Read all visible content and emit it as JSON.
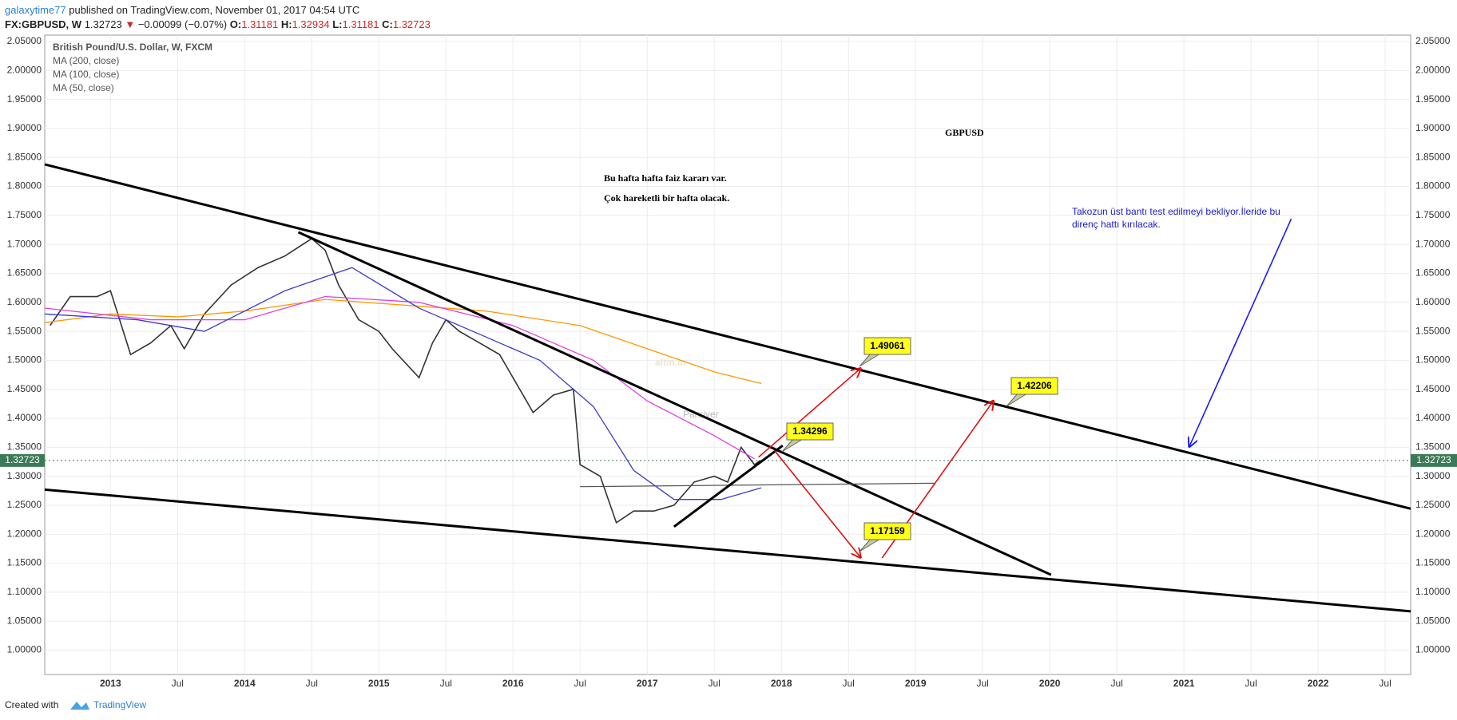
{
  "header": {
    "author": "galaxytime77",
    "published": "published on TradingView.com, November 01, 2017 04:54 UTC",
    "symbol": "FX:GBPUSD, W",
    "direction": "▼",
    "change": "−0.00099 (−0.07%)",
    "ohlc": [
      {
        "name": "O:",
        "value": "1.31181"
      },
      {
        "name": "H:",
        "value": "1.32934"
      },
      {
        "name": "L:",
        "value": "1.31181"
      },
      {
        "name": "C:",
        "value": "1.32723"
      }
    ]
  },
  "footer": {
    "created": "Created with",
    "brand": "TradingView"
  },
  "chart_data": {
    "type": "line",
    "grid": true,
    "xlim": [
      2012.51,
      2022.69
    ],
    "ylim": [
      0.958,
      2.061
    ],
    "xticks": [
      2013,
      {
        "value": 2013.5,
        "label": "Jul"
      },
      2014,
      {
        "value": 2014.5,
        "label": "Jul"
      },
      2015,
      {
        "value": 2015.5,
        "label": "Jul"
      },
      2016,
      {
        "value": 2016.5,
        "label": "Jul"
      },
      2017,
      {
        "value": 2017.5,
        "label": "Jul"
      },
      2018,
      {
        "value": 2018.5,
        "label": "Jul"
      },
      2019,
      {
        "value": 2019.5,
        "label": "Jul"
      },
      2020,
      {
        "value": 2020.5,
        "label": "Jul"
      },
      2021,
      {
        "value": 2021.5,
        "label": "Jul"
      },
      2022,
      {
        "value": 2022.5,
        "label": "Jul"
      }
    ],
    "yticks": [
      {
        "value": 1.0,
        "label": "1.00000"
      },
      {
        "value": 1.05,
        "label": "1.05000"
      },
      {
        "value": 1.1,
        "label": "1.10000"
      },
      {
        "value": 1.15,
        "label": "1.15000"
      },
      {
        "value": 1.2,
        "label": "1.20000"
      },
      {
        "value": 1.25,
        "label": "1.25000"
      },
      {
        "value": 1.3,
        "label": "1.30000"
      },
      {
        "value": 1.35,
        "label": "1.35000"
      },
      {
        "value": 1.4,
        "label": "1.40000"
      },
      {
        "value": 1.45,
        "label": "1.45000"
      },
      {
        "value": 1.5,
        "label": "1.50000"
      },
      {
        "value": 1.55,
        "label": "1.55000"
      },
      {
        "value": 1.6,
        "label": "1.60000"
      },
      {
        "value": 1.65,
        "label": "1.65000"
      },
      {
        "value": 1.7,
        "label": "1.70000"
      },
      {
        "value": 1.75,
        "label": "1.75000"
      },
      {
        "value": 1.8,
        "label": "1.80000"
      },
      {
        "value": 1.85,
        "label": "1.85000"
      },
      {
        "value": 1.9,
        "label": "1.90000"
      },
      {
        "value": 1.95,
        "label": "1.95000"
      },
      {
        "value": 2.0,
        "label": "2.00000"
      },
      {
        "value": 2.05,
        "label": "2.05000"
      }
    ],
    "current_price": {
      "value": 1.32723,
      "label": "1.32723",
      "color": "#3b7a57"
    },
    "series": [
      {
        "name": "British Pound/U.S. Dollar, W, FXCM",
        "color": "#333333",
        "x": [
          2012.55,
          2012.7,
          2012.9,
          2013.0,
          2013.15,
          2013.3,
          2013.45,
          2013.55,
          2013.7,
          2013.9,
          2014.1,
          2014.3,
          2014.5,
          2014.6,
          2014.7,
          2014.85,
          2015.0,
          2015.1,
          2015.3,
          2015.4,
          2015.5,
          2015.6,
          2015.75,
          2015.9,
          2016.0,
          2016.15,
          2016.3,
          2016.45,
          2016.5,
          2016.65,
          2016.77,
          2016.9,
          2017.05,
          2017.2,
          2017.35,
          2017.5,
          2017.6,
          2017.7,
          2017.8,
          2017.84
        ],
        "values": [
          1.56,
          1.61,
          1.61,
          1.62,
          1.51,
          1.53,
          1.56,
          1.52,
          1.58,
          1.63,
          1.66,
          1.68,
          1.71,
          1.69,
          1.63,
          1.57,
          1.55,
          1.52,
          1.47,
          1.53,
          1.57,
          1.55,
          1.53,
          1.51,
          1.47,
          1.41,
          1.44,
          1.45,
          1.32,
          1.3,
          1.22,
          1.24,
          1.24,
          1.25,
          1.29,
          1.3,
          1.29,
          1.35,
          1.32,
          1.327
        ]
      },
      {
        "name": "MA (200, close)",
        "color": "#ff9800",
        "x": [
          2012.51,
          2013.0,
          2013.5,
          2014.0,
          2014.6,
          2015.2,
          2015.8,
          2016.5,
          2017.0,
          2017.5,
          2017.85
        ],
        "values": [
          1.565,
          1.58,
          1.575,
          1.585,
          1.605,
          1.595,
          1.585,
          1.56,
          1.52,
          1.48,
          1.46
        ]
      },
      {
        "name": "MA (100, close)",
        "color": "#e040e0",
        "x": [
          2012.51,
          2013.3,
          2014.0,
          2014.6,
          2015.3,
          2016.0,
          2016.6,
          2017.0,
          2017.5,
          2017.8
        ],
        "values": [
          1.59,
          1.57,
          1.57,
          1.61,
          1.6,
          1.56,
          1.5,
          1.43,
          1.37,
          1.33
        ]
      },
      {
        "name": "MA (50, close)",
        "color": "#3a3acc",
        "x": [
          2012.51,
          2013.2,
          2013.7,
          2014.3,
          2014.8,
          2015.3,
          2015.7,
          2016.2,
          2016.6,
          2016.9,
          2017.2,
          2017.55,
          2017.85
        ],
        "values": [
          1.58,
          1.57,
          1.55,
          1.62,
          1.66,
          1.59,
          1.55,
          1.5,
          1.42,
          1.31,
          1.26,
          1.26,
          1.28
        ]
      }
    ],
    "trendlines": [
      {
        "color": "#000000",
        "x": [
          2012.51,
          2022.69
        ],
        "values": [
          1.838,
          1.244
        ]
      },
      {
        "color": "#000000",
        "x": [
          2012.51,
          2022.69
        ],
        "values": [
          1.277,
          1.067
        ]
      },
      {
        "color": "#000000",
        "x": [
          2014.4,
          2020.01
        ],
        "values": [
          1.721,
          1.13
        ]
      },
      {
        "color": "#555555",
        "x": [
          2016.5,
          2019.14
        ],
        "values": [
          1.282,
          1.288
        ]
      },
      {
        "color": "#000000",
        "x": [
          2017.2,
          2018.01
        ],
        "values": [
          1.213,
          1.353
        ]
      }
    ],
    "arrows": [
      {
        "color": "#e01010",
        "x": [
          2017.83,
          2018.59
        ],
        "values": [
          1.333,
          1.486
        ]
      },
      {
        "color": "#e01010",
        "x": [
          2017.95,
          2018.59
        ],
        "values": [
          1.344,
          1.16
        ]
      },
      {
        "color": "#e01010",
        "x": [
          2018.75,
          2019.58
        ],
        "values": [
          1.159,
          1.43
        ]
      },
      {
        "color": "#1a1aff",
        "x": [
          2021.8,
          2021.04
        ],
        "values": [
          1.744,
          1.351
        ]
      }
    ],
    "price_labels": [
      "1.49061",
      "1.42206",
      "1.34296",
      "1.17159"
    ],
    "symbol_note": "GBPUSD",
    "note_lines": [
      "Bu hafta hafta faiz kararı var.",
      "Çok hareketli bir hafta olacak."
    ],
    "blue_note": [
      "Takozun üst bantı test edilmeyi bekliyor.İleride bu",
      "direnç hattı kırılacak."
    ],
    "watermark": [
      "altin.in",
      "Panriver"
    ]
  }
}
